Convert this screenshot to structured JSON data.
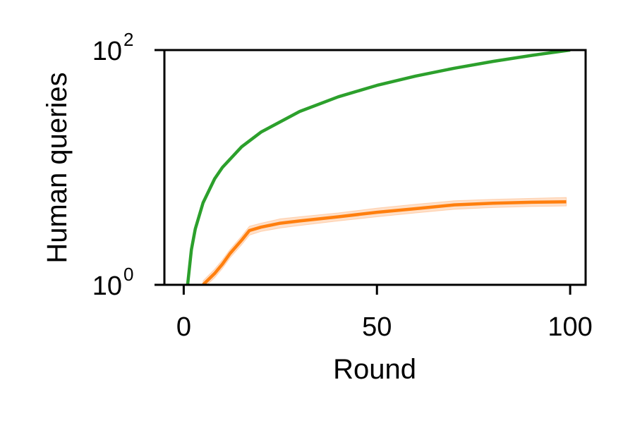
{
  "chart_data": {
    "type": "line",
    "xlabel": "Round",
    "ylabel": "Human queries",
    "xlim": [
      -5,
      104
    ],
    "ylim": [
      1,
      100
    ],
    "yscale": "log",
    "grid": false,
    "x_ticks": [
      {
        "value": 0,
        "label": "0"
      },
      {
        "value": 50,
        "label": "50"
      },
      {
        "value": 100,
        "label": "100"
      }
    ],
    "y_ticks": [
      {
        "value": 1,
        "base": "10",
        "exp": "0"
      },
      {
        "value": 100,
        "base": "10",
        "exp": "2"
      }
    ],
    "series": [
      {
        "color": "#2ca02c",
        "x": [
          1,
          2,
          3,
          5,
          8,
          10,
          15,
          20,
          30,
          40,
          50,
          60,
          70,
          80,
          90,
          100
        ],
        "y": [
          1,
          2,
          3,
          5,
          8,
          10,
          15,
          20,
          30,
          40,
          50,
          60,
          70,
          80,
          90,
          100
        ]
      },
      {
        "color": "#ff7f0e",
        "band_color": "#ffbb88",
        "x": [
          5,
          8,
          10,
          12,
          15,
          17,
          20,
          25,
          30,
          40,
          50,
          60,
          70,
          80,
          90,
          99
        ],
        "y": [
          1.0,
          1.25,
          1.5,
          1.85,
          2.4,
          2.9,
          3.1,
          3.35,
          3.5,
          3.8,
          4.15,
          4.45,
          4.8,
          4.95,
          5.05,
          5.1
        ],
        "y_low": [
          0.93,
          1.15,
          1.38,
          1.7,
          2.2,
          2.65,
          2.85,
          3.05,
          3.2,
          3.5,
          3.8,
          4.1,
          4.4,
          4.55,
          4.65,
          4.7
        ],
        "y_high": [
          1.08,
          1.36,
          1.63,
          2.0,
          2.6,
          3.15,
          3.35,
          3.65,
          3.8,
          4.1,
          4.5,
          4.85,
          5.2,
          5.35,
          5.45,
          5.55
        ]
      }
    ]
  }
}
